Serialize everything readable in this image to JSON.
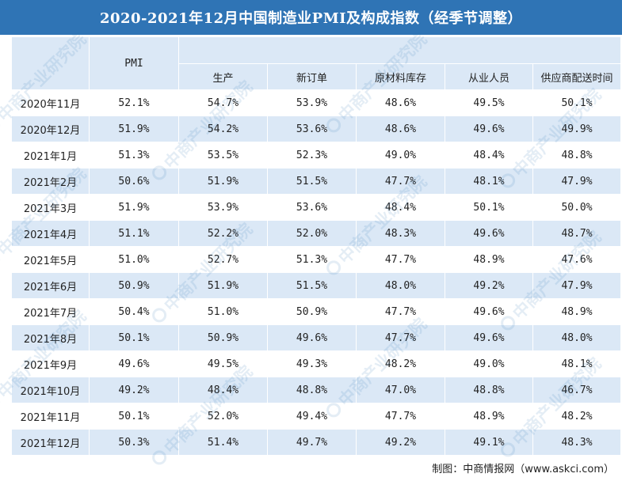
{
  "title": "2020-2021年12月中国制造业PMI及构成指数（经季节调整）",
  "headers": {
    "pmi": "PMI",
    "sub": [
      "生产",
      "新订单",
      "原材料库存",
      "从业人员",
      "供应商配送时间"
    ]
  },
  "rows": [
    [
      "2020年11月",
      "52.1%",
      "54.7%",
      "53.9%",
      "48.6%",
      "49.5%",
      "50.1%"
    ],
    [
      "2020年12月",
      "51.9%",
      "54.2%",
      "53.6%",
      "48.6%",
      "49.6%",
      "49.9%"
    ],
    [
      "2021年1月",
      "51.3%",
      "53.5%",
      "52.3%",
      "49.0%",
      "48.4%",
      "48.8%"
    ],
    [
      "2021年2月",
      "50.6%",
      "51.9%",
      "51.5%",
      "47.7%",
      "48.1%",
      "47.9%"
    ],
    [
      "2021年3月",
      "51.9%",
      "53.9%",
      "53.6%",
      "48.4%",
      "50.1%",
      "50.0%"
    ],
    [
      "2021年4月",
      "51.1%",
      "52.2%",
      "52.0%",
      "48.3%",
      "49.6%",
      "48.7%"
    ],
    [
      "2021年5月",
      "51.0%",
      "52.7%",
      "51.3%",
      "47.7%",
      "48.9%",
      "47.6%"
    ],
    [
      "2021年6月",
      "50.9%",
      "51.9%",
      "51.5%",
      "48.0%",
      "49.2%",
      "47.9%"
    ],
    [
      "2021年7月",
      "50.4%",
      "51.0%",
      "50.9%",
      "47.7%",
      "49.6%",
      "48.9%"
    ],
    [
      "2021年8月",
      "50.1%",
      "50.9%",
      "49.6%",
      "47.7%",
      "49.6%",
      "48.0%"
    ],
    [
      "2021年9月",
      "49.6%",
      "49.5%",
      "49.3%",
      "48.2%",
      "49.0%",
      "48.1%"
    ],
    [
      "2021年10月",
      "49.2%",
      "48.4%",
      "48.8%",
      "47.0%",
      "48.8%",
      "46.7%"
    ],
    [
      "2021年11月",
      "50.1%",
      "52.0%",
      "49.4%",
      "47.7%",
      "48.9%",
      "48.2%"
    ],
    [
      "2021年12月",
      "50.3%",
      "51.4%",
      "49.7%",
      "49.2%",
      "49.1%",
      "48.3%"
    ]
  ],
  "source": "制图：中商情报网（www.askci.com）",
  "watermark": "中商产业研究院",
  "colors": {
    "title_bg": "#2f74b5",
    "header_bg": "#dbe8f6",
    "stripe_bg": "#dbe8f6"
  }
}
